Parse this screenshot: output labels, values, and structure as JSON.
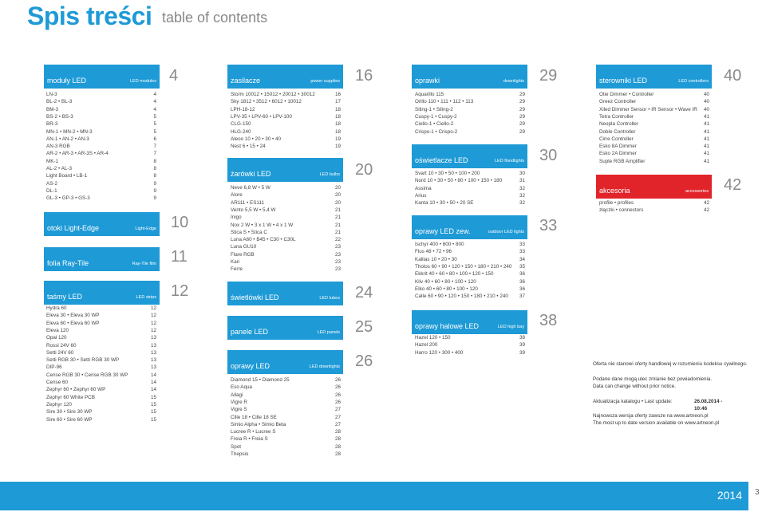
{
  "title": "Spis treści",
  "subtitle": "table of contents",
  "sections": [
    {
      "pl": "moduły LED",
      "en": "LED modules",
      "page": "4"
    },
    {
      "pl": "zasilacze",
      "en": "power supplies",
      "page": "16"
    },
    {
      "pl": "oprawki",
      "en": "downlights",
      "page": "29"
    },
    {
      "pl": "sterowniki LED",
      "en": "LED controllers",
      "page": "40"
    },
    {
      "pl": "otoki Light-Edge",
      "en": "Light-Edge",
      "page": "10"
    },
    {
      "pl": "folia Ray-Tile",
      "en": "Ray-Tile film",
      "page": "11"
    },
    {
      "pl": "taśmy LED",
      "en": "LED strips",
      "page": "12"
    },
    {
      "pl": "żarówki LED",
      "en": "LED bulbs",
      "page": "20"
    },
    {
      "pl": "świetlówki LED",
      "en": "LED tubes",
      "page": "24"
    },
    {
      "pl": "panele LED",
      "en": "LED panels",
      "page": "25"
    },
    {
      "pl": "oprawy LED",
      "en": "LED downlights",
      "page": "26"
    },
    {
      "pl": "oświetlacze LED",
      "en": "LED floodlights",
      "page": "30"
    },
    {
      "pl": "oprawy LED zew.",
      "en": "outdoor LED lights",
      "page": "33"
    },
    {
      "pl": "oprawy halowe LED",
      "en": "LED high bay",
      "page": "38"
    },
    {
      "pl": "akcesoria",
      "en": "accessories",
      "page": "42"
    }
  ],
  "lists": {
    "modules": [
      [
        "LN-3",
        "4"
      ],
      [
        "BL-2 • BL-3",
        "4"
      ],
      [
        "BM-3",
        "4"
      ],
      [
        "BS-2 • BS-3",
        "5"
      ],
      [
        "BR-3",
        "5"
      ],
      [
        "MN-1 • MN-2 • MN-3",
        "5"
      ],
      [
        "AN-1 • AN-2 • AN-3",
        "6"
      ],
      [
        "AN-3 RGB",
        "7"
      ],
      [
        "AR-2 • AR-3 • AR-3S • AR-4",
        "7"
      ],
      [
        "MK-1",
        "8"
      ],
      [
        "AL-2 • AL-3",
        "8"
      ],
      [
        "Light Board • LB-1",
        "8"
      ],
      [
        "AS-2",
        "9"
      ],
      [
        "DL-1",
        "9"
      ],
      [
        "GL-3 • GP-3 • GS-3",
        "9"
      ]
    ],
    "strips": [
      [
        "Hydra 60",
        "12"
      ],
      [
        "Eleva 30 • Eleva 30 WP",
        "12"
      ],
      [
        "Eleva 60 • Eleva 60 WP",
        "12"
      ],
      [
        "Eleva 120",
        "12"
      ],
      [
        "Opal 120",
        "13"
      ],
      [
        "Rossi 24V 60",
        "13"
      ],
      [
        "Setti 24V 60",
        "13"
      ],
      [
        "Setti RGB 30 • Setti RGB 30 WP",
        "13"
      ],
      [
        "DIP-96",
        "13"
      ],
      [
        "Cerise RGB 30 • Cerise RGB 30 WP",
        "14"
      ],
      [
        "Cerise 60",
        "14"
      ],
      [
        "Zephyr 60 • Zephyr 60 WP",
        "14"
      ],
      [
        "Zephyr 60 White PCB",
        "15"
      ],
      [
        "Zephyr 120",
        "15"
      ],
      [
        "Sire 30 • Sire 30 WP",
        "15"
      ],
      [
        "Sire 60 • Sire 60 WP",
        "15"
      ]
    ],
    "power": [
      [
        "Storm 10012 • 15012 • 20012 • 30012",
        "16"
      ],
      [
        "Sky 1812 • 3512 • 6012 • 10012",
        "17"
      ],
      [
        "LPH-18-12",
        "18"
      ],
      [
        "LPV-35 • LPV-60 • LPV-100",
        "18"
      ],
      [
        "CLG-150",
        "18"
      ],
      [
        "HLG-240",
        "18"
      ],
      [
        "Aleoo 10 • 20 • 30 • 40",
        "19"
      ],
      [
        "Nest 6 • 15 • 24",
        "19"
      ]
    ],
    "bulbs": [
      [
        "Neve 6,8 W • 5 W",
        "20"
      ],
      [
        "Alore",
        "20"
      ],
      [
        "AR111 • ES111",
        "20"
      ],
      [
        "Vento 5,5 W • 5,4 W",
        "21"
      ],
      [
        "Inigo",
        "21"
      ],
      [
        "Nox 2 W • 3 x 1 W • 4 x 1 W",
        "21"
      ],
      [
        "Stica S • Stica C",
        "21"
      ],
      [
        "Luna A60 • B45 • C30 • C30L",
        "22"
      ],
      [
        "Luna GU10",
        "23"
      ],
      [
        "Flare RGB",
        "23"
      ],
      [
        "Kari",
        "23"
      ],
      [
        "Ferre",
        "23"
      ]
    ],
    "downlights2": [
      [
        "Diamond 15 • Diamond 25",
        "26"
      ],
      [
        "Eso Aqua",
        "26"
      ],
      [
        "Allagi",
        "26"
      ],
      [
        "Vigre R",
        "26"
      ],
      [
        "Vigre S",
        "27"
      ],
      [
        "Cille 18 • Cille 18 SE",
        "27"
      ],
      [
        "Simio Alpha • Simio Beta",
        "27"
      ],
      [
        "Lucree R • Lucree S",
        "28"
      ],
      [
        "Freia R • Freia S",
        "28"
      ],
      [
        "Spot",
        "28"
      ],
      [
        "Thepsio",
        "28"
      ]
    ],
    "oprawki": [
      [
        "Aquarillo 115",
        "29"
      ],
      [
        "Orillo 110 • 111 • 112 • 113",
        "29"
      ],
      [
        "Siling-1 • Siling-2",
        "29"
      ],
      [
        "Cuspy-1 • Cuspy-2",
        "29"
      ],
      [
        "Ciello-1 • Ciello-2",
        "29"
      ],
      [
        "Crispo-1 • Crispo-2",
        "29"
      ]
    ],
    "flood": [
      [
        "Svart 10 • 30 • 50 • 100 • 200",
        "30"
      ],
      [
        "Nord 10 • 30 • 50 • 80 • 100 • 150 • 180",
        "31"
      ],
      [
        "Assima",
        "32"
      ],
      [
        "Arius",
        "32"
      ],
      [
        "Kanta 10 • 30 • 50 • 20 SE",
        "32"
      ]
    ],
    "outdoor": [
      [
        "Ischyr 400 • 600 • 800",
        "33"
      ],
      [
        "Flus 48 • 72 • 96",
        "33"
      ],
      [
        "Kallias 10 • 20 • 30",
        "34"
      ],
      [
        "Tholos 60 • 90 • 120 • 150 • 180 • 210 • 240",
        "35"
      ],
      [
        "Ekkrit 40 • 60 • 80 • 100 • 120 • 150",
        "36"
      ],
      [
        "Kliv 40 • 60 • 80 • 100 • 120",
        "36"
      ],
      [
        "Elko 40 • 60 • 80 • 100 • 120",
        "36"
      ],
      [
        "Calle 60 • 90 • 120 • 150 • 180 • 210 • 240",
        "37"
      ]
    ],
    "highbay": [
      [
        "Hazel 120 • 150",
        "38"
      ],
      [
        "Hazel 200",
        "39"
      ],
      [
        "Harro 120 • 300 • 400",
        "39"
      ]
    ],
    "controllers": [
      [
        "Otie Dimmer • Controller",
        "40"
      ],
      [
        "Greez Controller",
        "40"
      ],
      [
        "Xiled Dimmer Sensor • IR Sensor • Wave IR",
        "40"
      ],
      [
        "Tetra Controller",
        "41"
      ],
      [
        "Neopla Controller",
        "41"
      ],
      [
        "Doble Controller",
        "41"
      ],
      [
        "Cirre Controller",
        "41"
      ],
      [
        "Esko 8A Dimmer",
        "41"
      ],
      [
        "Esko 2A Dimmer",
        "41"
      ],
      [
        "Suple RGB Amplifier",
        "41"
      ]
    ],
    "accessories": [
      [
        "profile • profiles",
        "42"
      ],
      [
        "złączki • connectors",
        "42"
      ]
    ]
  },
  "notes": {
    "offer": "Oferta nie stanowi oferty handlowej w rozumieniu kodeksu cywilnego.",
    "change_pl": "Podane dane mogą ulec zmianie bez powiadomienia.",
    "change_en": "Data can change without prior notice.",
    "update_label": "Aktualizacja katalogu • Last update:",
    "update_date": "26.08.2014 - 10:46",
    "web_pl": "Najnowsza wersja oferty zawsze na www.artneon.pl",
    "web_en": "The most up to date version available on www.artneon.pl"
  },
  "footer": {
    "year": "2014",
    "page_number": "3"
  },
  "colors": {
    "accent": "#1e9ad6",
    "accessories": "#e1242a"
  }
}
